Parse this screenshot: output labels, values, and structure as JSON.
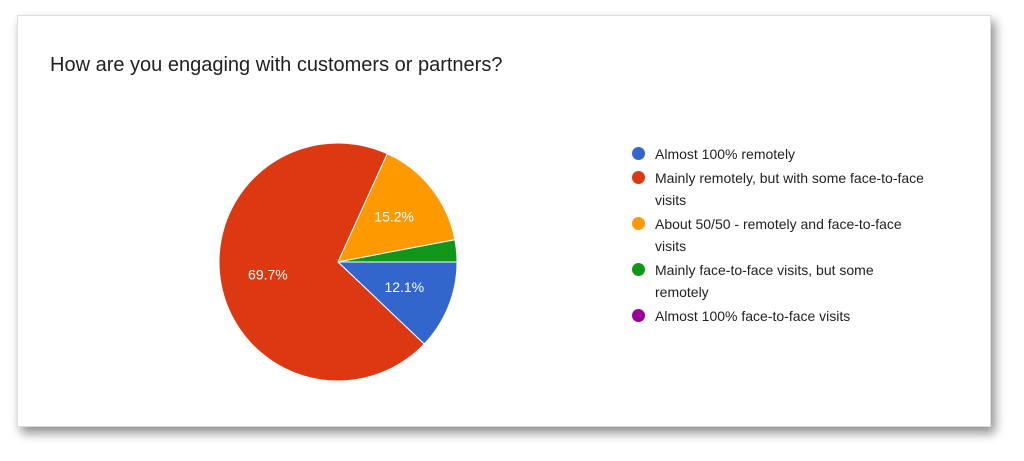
{
  "chart_data": {
    "type": "pie",
    "title": "How are you engaging with customers or partners?",
    "categories": [
      "Almost 100% remotely",
      "Mainly remotely, but with some face-to-face visits",
      "About 50/50 - remotely and face-to-face visits",
      "Mainly face-to-face visits, but some remotely",
      "Almost 100% face-to-face visits"
    ],
    "values": [
      12.1,
      69.7,
      15.2,
      3.0,
      0
    ],
    "value_labels": [
      "12.1%",
      "69.7%",
      "15.2%",
      null,
      null
    ],
    "colors": [
      "#3366cc",
      "#dc3912",
      "#ff9900",
      "#109618",
      "#990099"
    ]
  }
}
